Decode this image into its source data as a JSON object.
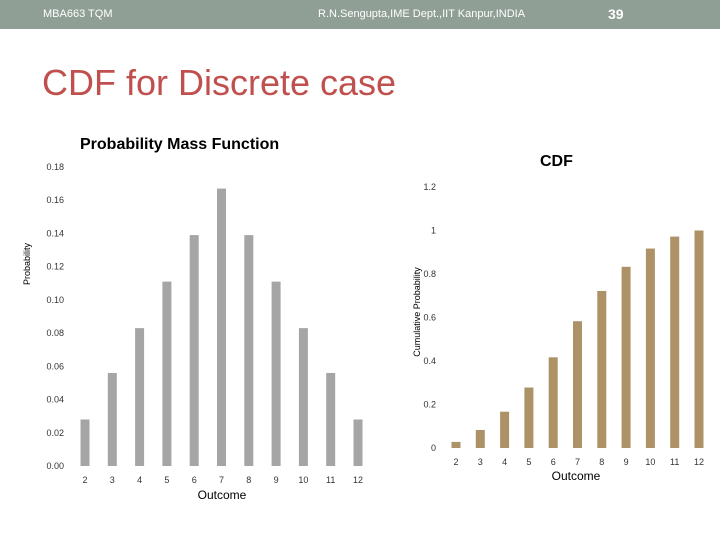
{
  "header": {
    "left": "MBA663 TQM",
    "center": "R.N.Sengupta,IME Dept.,IIT Kanpur,INDIA",
    "page_number": "39"
  },
  "slide": {
    "title": "CDF for Discrete case"
  },
  "colors": {
    "pmf_bar": "#a5a5a5",
    "cdf_bar": "#ad9268",
    "title": "#c0504d",
    "header_bg": "#8f9f95"
  },
  "chart_data": [
    {
      "type": "bar",
      "title": "Probability Mass Function",
      "xlabel": "Outcome",
      "ylabel": "Probability",
      "categories": [
        "2",
        "3",
        "4",
        "5",
        "6",
        "7",
        "8",
        "9",
        "10",
        "11",
        "12"
      ],
      "values": [
        0.028,
        0.056,
        0.083,
        0.111,
        0.139,
        0.167,
        0.139,
        0.111,
        0.083,
        0.056,
        0.028
      ],
      "ylim": [
        0,
        0.18
      ],
      "yticks": [
        "0.00",
        "0.02",
        "0.04",
        "0.06",
        "0.08",
        "0.10",
        "0.12",
        "0.14",
        "0.16",
        "0.18"
      ],
      "grid": false
    },
    {
      "type": "bar",
      "title": "CDF",
      "xlabel": "Outcome",
      "ylabel": "Cumulative Probability",
      "categories": [
        "2",
        "3",
        "4",
        "5",
        "6",
        "7",
        "8",
        "9",
        "10",
        "11",
        "12"
      ],
      "values": [
        0.028,
        0.083,
        0.167,
        0.278,
        0.417,
        0.583,
        0.722,
        0.833,
        0.917,
        0.972,
        1.0
      ],
      "ylim": [
        0,
        1.2
      ],
      "yticks": [
        "0",
        "0.2",
        "0.4",
        "0.6",
        "0.8",
        "1",
        "1.2"
      ],
      "grid": false
    }
  ]
}
